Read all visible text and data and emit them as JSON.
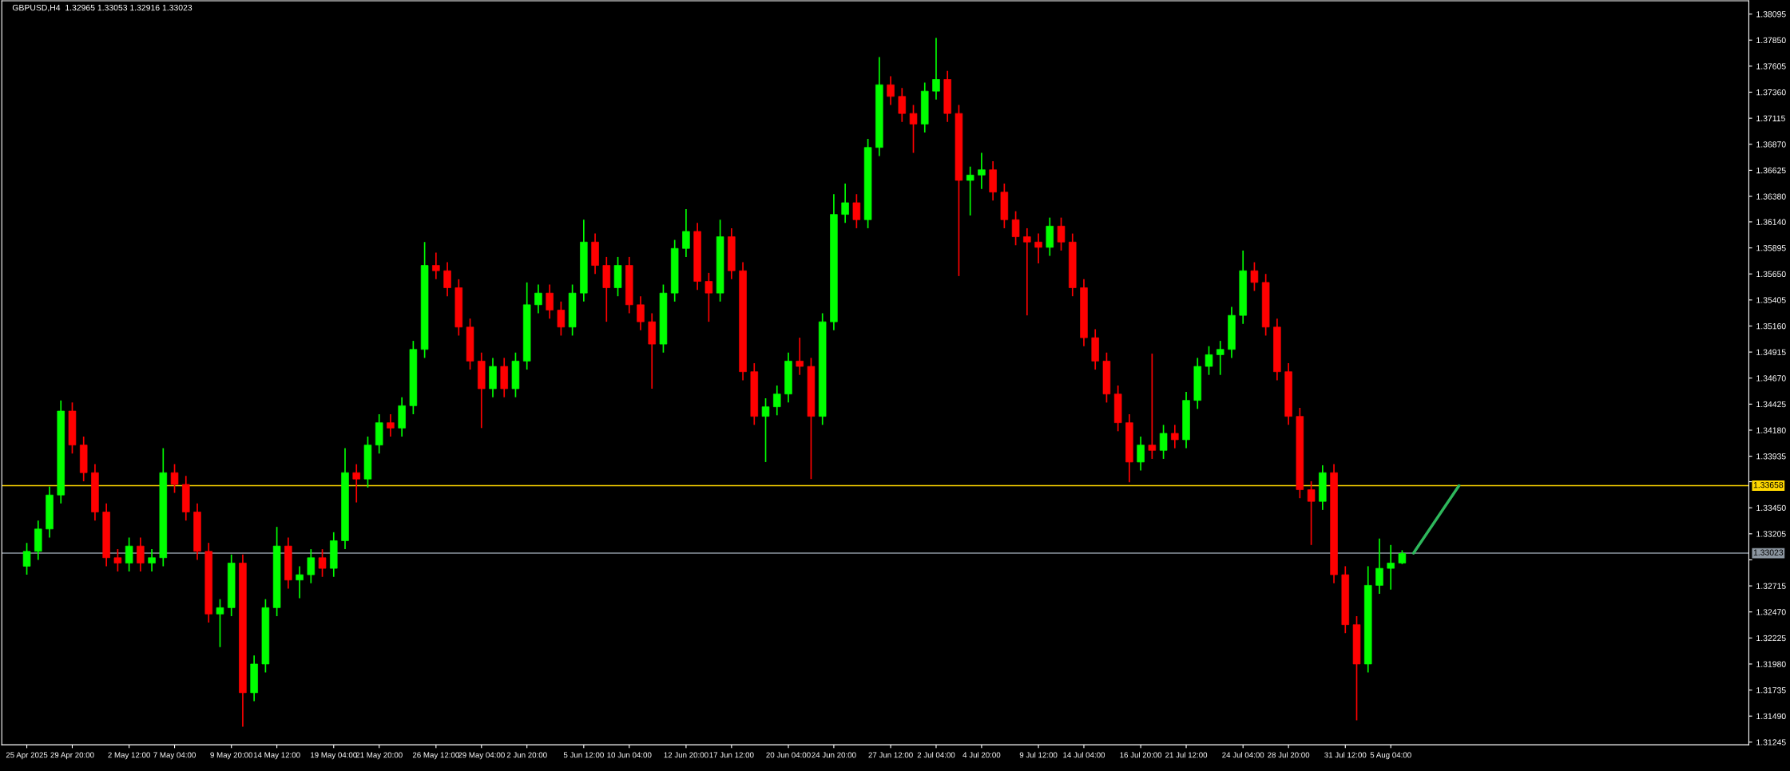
{
  "chart_data": {
    "type": "candlestick",
    "title": "GBPUSD,H4  1.32965 1.33053 1.32916 1.33023",
    "categories": [
      "25 Apr 2025",
      null,
      null,
      null,
      "29 Apr 20:00",
      null,
      null,
      null,
      null,
      "2 May 12:00",
      null,
      null,
      null,
      "7 May 04:00",
      null,
      null,
      null,
      null,
      "9 May 20:00",
      null,
      null,
      null,
      "14 May 12:00",
      null,
      null,
      null,
      null,
      "19 May 04:00",
      null,
      null,
      null,
      "21 May 20:00",
      null,
      null,
      null,
      null,
      "26 May 12:00",
      null,
      null,
      null,
      "29 May 04:00",
      null,
      null,
      null,
      "2 Jun 20:00",
      null,
      null,
      null,
      null,
      "5 Jun 12:00",
      null,
      null,
      null,
      "10 Jun 04:00",
      null,
      null,
      null,
      null,
      "12 Jun 20:00",
      null,
      null,
      null,
      "17 Jun 12:00",
      null,
      null,
      null,
      null,
      "20 Jun 04:00",
      null,
      null,
      null,
      "24 Jun 20:00",
      null,
      null,
      null,
      null,
      "27 Jun 12:00",
      null,
      null,
      null,
      "2 Jul 04:00",
      null,
      null,
      null,
      "4 Jul 20:00",
      null,
      null,
      null,
      null,
      "9 Jul 12:00",
      null,
      null,
      null,
      "14 Jul 04:00",
      null,
      null,
      null,
      null,
      "16 Jul 20:00",
      null,
      null,
      null,
      "21 Jul 12:00",
      null,
      null,
      null,
      null,
      "24 Jul 04:00",
      null,
      null,
      null,
      "28 Jul 20:00",
      null,
      null,
      null,
      null,
      "31 Jul 12:00",
      null,
      null,
      null,
      "5 Aug 04:00",
      null,
      null,
      null,
      null,
      null,
      null,
      null,
      null,
      null,
      null,
      null,
      null,
      null,
      null,
      null,
      null,
      null,
      null,
      null,
      null,
      null,
      null,
      null,
      null,
      null,
      null,
      null,
      null,
      null,
      null,
      null
    ],
    "ohlc": [
      [
        1.329,
        1.3312,
        1.3282,
        1.3304
      ],
      [
        1.3304,
        1.3333,
        1.3296,
        1.3325
      ],
      [
        1.3325,
        1.3365,
        1.3317,
        1.3357
      ],
      [
        1.3357,
        1.3446,
        1.3349,
        1.3436
      ],
      [
        1.3436,
        1.3444,
        1.3396,
        1.3404
      ],
      [
        1.3404,
        1.3412,
        1.337,
        1.3378
      ],
      [
        1.3378,
        1.3386,
        1.3333,
        1.3341
      ],
      [
        1.3341,
        1.3349,
        1.329,
        1.3298
      ],
      [
        1.3298,
        1.3306,
        1.3285,
        1.3293
      ],
      [
        1.3293,
        1.3317,
        1.3285,
        1.3309
      ],
      [
        1.3309,
        1.3317,
        1.3285,
        1.3293
      ],
      [
        1.3293,
        1.3306,
        1.3285,
        1.3298
      ],
      [
        1.3298,
        1.3401,
        1.329,
        1.3378
      ],
      [
        1.3378,
        1.3386,
        1.3359,
        1.3367
      ],
      [
        1.3367,
        1.3375,
        1.3333,
        1.3341
      ],
      [
        1.3341,
        1.3349,
        1.3296,
        1.3304
      ],
      [
        1.3304,
        1.3312,
        1.3237,
        1.3245
      ],
      [
        1.3245,
        1.3259,
        1.3214,
        1.3251
      ],
      [
        1.3251,
        1.3301,
        1.3243,
        1.3293
      ],
      [
        1.3293,
        1.3301,
        1.3139,
        1.3171
      ],
      [
        1.3171,
        1.3206,
        1.3163,
        1.3198
      ],
      [
        1.3198,
        1.3259,
        1.319,
        1.3251
      ],
      [
        1.3251,
        1.3327,
        1.3243,
        1.3309
      ],
      [
        1.3309,
        1.3317,
        1.3269,
        1.3277
      ],
      [
        1.3277,
        1.329,
        1.326,
        1.3282
      ],
      [
        1.3282,
        1.3306,
        1.3274,
        1.3298
      ],
      [
        1.3298,
        1.3306,
        1.328,
        1.3288
      ],
      [
        1.3288,
        1.3322,
        1.328,
        1.3314
      ],
      [
        1.3314,
        1.3401,
        1.3306,
        1.3378
      ],
      [
        1.3378,
        1.3386,
        1.335,
        1.3372
      ],
      [
        1.3372,
        1.3412,
        1.3364,
        1.3404
      ],
      [
        1.3404,
        1.3433,
        1.3396,
        1.3425
      ],
      [
        1.3425,
        1.3433,
        1.3412,
        1.342
      ],
      [
        1.342,
        1.3449,
        1.3412,
        1.3441
      ],
      [
        1.3441,
        1.3502,
        1.3433,
        1.3494
      ],
      [
        1.3494,
        1.3595,
        1.3486,
        1.3573
      ],
      [
        1.3573,
        1.3585,
        1.356,
        1.3568
      ],
      [
        1.3568,
        1.3576,
        1.3544,
        1.3552
      ],
      [
        1.3552,
        1.356,
        1.3507,
        1.3515
      ],
      [
        1.3515,
        1.3523,
        1.3475,
        1.3483
      ],
      [
        1.3483,
        1.3491,
        1.342,
        1.3457
      ],
      [
        1.3457,
        1.3486,
        1.3449,
        1.3478
      ],
      [
        1.3478,
        1.3486,
        1.3449,
        1.3457
      ],
      [
        1.3457,
        1.3491,
        1.3449,
        1.3483
      ],
      [
        1.3483,
        1.3557,
        1.3475,
        1.3536
      ],
      [
        1.3536,
        1.3555,
        1.3528,
        1.3547
      ],
      [
        1.3547,
        1.3555,
        1.3523,
        1.3531
      ],
      [
        1.3531,
        1.3539,
        1.3507,
        1.3515
      ],
      [
        1.3515,
        1.3555,
        1.3507,
        1.3547
      ],
      [
        1.3547,
        1.3616,
        1.3539,
        1.3595
      ],
      [
        1.3595,
        1.3603,
        1.3565,
        1.3573
      ],
      [
        1.3573,
        1.3581,
        1.352,
        1.3552
      ],
      [
        1.3552,
        1.3581,
        1.3544,
        1.3573
      ],
      [
        1.3573,
        1.3581,
        1.3528,
        1.3536
      ],
      [
        1.3536,
        1.3544,
        1.3512,
        1.352
      ],
      [
        1.352,
        1.3528,
        1.3457,
        1.3499
      ],
      [
        1.3499,
        1.3555,
        1.3491,
        1.3547
      ],
      [
        1.3547,
        1.3597,
        1.3539,
        1.3589
      ],
      [
        1.3589,
        1.3626,
        1.3581,
        1.3605
      ],
      [
        1.3605,
        1.3613,
        1.355,
        1.3558
      ],
      [
        1.3558,
        1.3566,
        1.352,
        1.3547
      ],
      [
        1.3547,
        1.3616,
        1.3539,
        1.36
      ],
      [
        1.36,
        1.3608,
        1.356,
        1.3568
      ],
      [
        1.3568,
        1.3576,
        1.3465,
        1.3473
      ],
      [
        1.3473,
        1.3481,
        1.3423,
        1.3431
      ],
      [
        1.3431,
        1.3448,
        1.3388,
        1.344
      ],
      [
        1.344,
        1.346,
        1.3432,
        1.3452
      ],
      [
        1.3452,
        1.3491,
        1.3444,
        1.3483
      ],
      [
        1.3483,
        1.3505,
        1.347,
        1.3478
      ],
      [
        1.3478,
        1.3486,
        1.3372,
        1.3431
      ],
      [
        1.3431,
        1.3528,
        1.3423,
        1.352
      ],
      [
        1.352,
        1.364,
        1.3512,
        1.3621
      ],
      [
        1.3621,
        1.365,
        1.3613,
        1.3632
      ],
      [
        1.3632,
        1.364,
        1.3608,
        1.3616
      ],
      [
        1.3616,
        1.3692,
        1.3608,
        1.3684
      ],
      [
        1.3684,
        1.3769,
        1.3676,
        1.3743
      ],
      [
        1.3743,
        1.3751,
        1.3724,
        1.3732
      ],
      [
        1.3732,
        1.374,
        1.3708,
        1.3716
      ],
      [
        1.3716,
        1.3724,
        1.3679,
        1.3706
      ],
      [
        1.3706,
        1.3745,
        1.3698,
        1.3737
      ],
      [
        1.3737,
        1.3787,
        1.3729,
        1.3748
      ],
      [
        1.3748,
        1.3756,
        1.3708,
        1.3716
      ],
      [
        1.3716,
        1.3724,
        1.3563,
        1.3653
      ],
      [
        1.3653,
        1.3666,
        1.362,
        1.3658
      ],
      [
        1.3658,
        1.3679,
        1.3645,
        1.3663
      ],
      [
        1.3663,
        1.3671,
        1.3634,
        1.3642
      ],
      [
        1.3642,
        1.365,
        1.3608,
        1.3616
      ],
      [
        1.3616,
        1.3624,
        1.3592,
        1.36
      ],
      [
        1.36,
        1.3608,
        1.3526,
        1.3595
      ],
      [
        1.3595,
        1.3603,
        1.3575,
        1.359
      ],
      [
        1.359,
        1.3618,
        1.3582,
        1.361
      ],
      [
        1.361,
        1.3618,
        1.3587,
        1.3595
      ],
      [
        1.3595,
        1.3603,
        1.3544,
        1.3552
      ],
      [
        1.3552,
        1.356,
        1.3497,
        1.3505
      ],
      [
        1.3505,
        1.3513,
        1.3475,
        1.3483
      ],
      [
        1.3483,
        1.3491,
        1.3444,
        1.3452
      ],
      [
        1.3452,
        1.346,
        1.3417,
        1.3425
      ],
      [
        1.3425,
        1.3433,
        1.3369,
        1.3388
      ],
      [
        1.3388,
        1.3412,
        1.338,
        1.3404
      ],
      [
        1.3404,
        1.349,
        1.3391,
        1.3399
      ],
      [
        1.3399,
        1.3423,
        1.3391,
        1.3415
      ],
      [
        1.3415,
        1.3423,
        1.3401,
        1.3409
      ],
      [
        1.3409,
        1.3454,
        1.3401,
        1.3446
      ],
      [
        1.3446,
        1.3486,
        1.3438,
        1.3478
      ],
      [
        1.3478,
        1.3497,
        1.347,
        1.3489
      ],
      [
        1.3489,
        1.3502,
        1.347,
        1.3494
      ],
      [
        1.3494,
        1.3534,
        1.3486,
        1.3526
      ],
      [
        1.3526,
        1.3587,
        1.3518,
        1.3568
      ],
      [
        1.3568,
        1.3576,
        1.3549,
        1.3557
      ],
      [
        1.3557,
        1.3565,
        1.3507,
        1.3515
      ],
      [
        1.3515,
        1.3523,
        1.3465,
        1.3473
      ],
      [
        1.3473,
        1.3481,
        1.3423,
        1.3431
      ],
      [
        1.3431,
        1.3439,
        1.3354,
        1.3362
      ],
      [
        1.3362,
        1.337,
        1.331,
        1.3351
      ],
      [
        1.3351,
        1.3385,
        1.3343,
        1.3378
      ],
      [
        1.3378,
        1.3386,
        1.3274,
        1.3282
      ],
      [
        1.3282,
        1.329,
        1.3227,
        1.3235
      ],
      [
        1.3235,
        1.3243,
        1.3145,
        1.3198
      ],
      [
        1.3198,
        1.329,
        1.319,
        1.3272
      ],
      [
        1.3272,
        1.3316,
        1.3264,
        1.3288
      ],
      [
        1.3288,
        1.331,
        1.3268,
        1.3293
      ],
      [
        1.3293,
        1.3305,
        1.3292,
        1.3302
      ],
      null,
      null,
      null,
      null,
      null,
      null,
      null,
      null,
      null,
      null,
      null,
      null,
      null,
      null,
      null,
      null,
      null,
      null,
      null,
      null,
      null,
      null,
      null,
      null,
      null,
      null,
      null,
      null,
      null,
      null
    ],
    "colors": [
      "#00ff00",
      "#00ff00",
      "#00ff00",
      "#00ff00",
      "#ff0000",
      "#ff0000",
      "#ff0000",
      "#ff0000",
      "#ff0000",
      "#00ff00",
      "#ff0000",
      "#00ff00",
      "#00ff00",
      "#ff0000",
      "#ff0000",
      "#ff0000",
      "#ff0000",
      "#00ff00",
      "#00ff00",
      "#ff0000",
      "#00ff00",
      "#00ff00",
      "#00ff00",
      "#ff0000",
      "#00ff00",
      "#00ff00",
      "#ff0000",
      "#00ff00",
      "#00ff00",
      "#ff0000",
      "#00ff00",
      "#00ff00",
      "#ff0000",
      "#00ff00",
      "#00ff00",
      "#00ff00",
      "#ff0000",
      "#ff0000",
      "#ff0000",
      "#ff0000",
      "#ff0000",
      "#00ff00",
      "#ff0000",
      "#00ff00",
      "#00ff00",
      "#00ff00",
      "#ff0000",
      "#ff0000",
      "#00ff00",
      "#00ff00",
      "#ff0000",
      "#ff0000",
      "#00ff00",
      "#ff0000",
      "#ff0000",
      "#ff0000",
      "#00ff00",
      "#00ff00",
      "#00ff00",
      "#ff0000",
      "#ff0000",
      "#00ff00",
      "#ff0000",
      "#ff0000",
      "#ff0000",
      "#00ff00",
      "#00ff00",
      "#00ff00",
      "#ff0000",
      "#ff0000",
      "#00ff00",
      "#00ff00",
      "#00ff00",
      "#ff0000",
      "#00ff00",
      "#00ff00",
      "#ff0000",
      "#ff0000",
      "#ff0000",
      "#00ff00",
      "#00ff00",
      "#ff0000",
      "#ff0000",
      "#00ff00",
      "#00ff00",
      "#ff0000",
      "#ff0000",
      "#ff0000",
      "#ff0000",
      "#ff0000",
      "#00ff00",
      "#ff0000",
      "#ff0000",
      "#ff0000",
      "#ff0000",
      "#ff0000",
      "#ff0000",
      "#ff0000",
      "#00ff00",
      "#ff0000",
      "#00ff00",
      "#ff0000",
      "#00ff00",
      "#00ff00",
      "#00ff00",
      "#00ff00",
      "#00ff00",
      "#00ff00",
      "#ff0000",
      "#ff0000",
      "#ff0000",
      "#ff0000",
      "#ff0000",
      "#ff0000",
      "#00ff00",
      "#ff0000",
      "#ff0000",
      "#ff0000",
      "#00ff00",
      "#00ff00",
      "#00ff00",
      "#00ff00",
      null,
      null,
      null,
      null,
      null,
      null,
      null,
      null,
      null,
      null,
      null,
      null,
      null,
      null,
      null,
      null,
      null,
      null,
      null,
      null,
      null,
      null,
      null,
      null,
      null,
      null,
      null,
      null,
      null,
      null
    ],
    "series": [
      {
        "type": "line",
        "color": "#2eb85c",
        "values": [
          null,
          null,
          null,
          null,
          null,
          null,
          null,
          null,
          null,
          null,
          null,
          null,
          null,
          null,
          null,
          null,
          null,
          null,
          null,
          null,
          null,
          null,
          null,
          null,
          null,
          null,
          null,
          null,
          null,
          null,
          null,
          null,
          null,
          null,
          null,
          null,
          null,
          null,
          null,
          null,
          null,
          null,
          null,
          null,
          null,
          null,
          null,
          null,
          null,
          null,
          null,
          null,
          null,
          null,
          null,
          null,
          null,
          null,
          null,
          null,
          null,
          null,
          null,
          null,
          null,
          null,
          null,
          null,
          null,
          null,
          null,
          null,
          null,
          null,
          null,
          null,
          null,
          null,
          null,
          null,
          null,
          null,
          null,
          null,
          null,
          null,
          null,
          null,
          null,
          null,
          null,
          null,
          null,
          null,
          null,
          null,
          null,
          null,
          null,
          null,
          null,
          null,
          null,
          null,
          null,
          null,
          null,
          null,
          null,
          null,
          null,
          null,
          null,
          null,
          null,
          null,
          null,
          null,
          null,
          null,
          null,
          null,
          1.33023,
          null,
          null,
          null,
          1.33658,
          null,
          null,
          null,
          null,
          null,
          null,
          null,
          null,
          null,
          null,
          null,
          null,
          null,
          null,
          null,
          null,
          null,
          null,
          null,
          null,
          null,
          null,
          null,
          null,
          null
        ]
      }
    ],
    "ref_lines": [
      {
        "axis": "y",
        "value": 1.33658,
        "label": "1.33658",
        "color": "#ffd700"
      },
      {
        "axis": "y",
        "value": 1.33023,
        "label": "1.33023",
        "color": "#8c96a0"
      }
    ],
    "ylim": [
      1.3122,
      1.3822
    ],
    "yticks": [
      {
        "value": 1.31245,
        "label": "1.31245"
      },
      {
        "value": 1.3149,
        "label": "1.31490"
      },
      {
        "value": 1.31735,
        "label": "1.31735"
      },
      {
        "value": 1.3198,
        "label": "1.31980"
      },
      {
        "value": 1.32225,
        "label": "1.32225"
      },
      {
        "value": 1.3247,
        "label": "1.32470"
      },
      {
        "value": 1.32715,
        "label": "1.32715"
      },
      {
        "value": 1.3296,
        "label": null
      },
      {
        "value": 1.33205,
        "label": "1.33205"
      },
      {
        "value": 1.3345,
        "label": "1.33450"
      },
      {
        "value": 1.33695,
        "label": null
      },
      {
        "value": 1.33935,
        "label": "1.33935"
      },
      {
        "value": 1.3418,
        "label": "1.34180"
      },
      {
        "value": 1.34425,
        "label": "1.34425"
      },
      {
        "value": 1.3467,
        "label": "1.34670"
      },
      {
        "value": 1.34915,
        "label": "1.34915"
      },
      {
        "value": 1.3516,
        "label": "1.35160"
      },
      {
        "value": 1.35405,
        "label": "1.35405"
      },
      {
        "value": 1.3565,
        "label": "1.35650"
      },
      {
        "value": 1.35895,
        "label": "1.35895"
      },
      {
        "value": 1.3614,
        "label": "1.36140"
      },
      {
        "value": 1.3638,
        "label": "1.36380"
      },
      {
        "value": 1.36625,
        "label": "1.36625"
      },
      {
        "value": 1.3687,
        "label": "1.36870"
      },
      {
        "value": 1.37115,
        "label": "1.37115"
      },
      {
        "value": 1.3736,
        "label": "1.37360"
      },
      {
        "value": 1.37605,
        "label": "1.37605"
      },
      {
        "value": 1.3785,
        "label": "1.37850"
      },
      {
        "value": 1.38095,
        "label": "1.38095"
      }
    ],
    "grid": false,
    "legend": false
  }
}
